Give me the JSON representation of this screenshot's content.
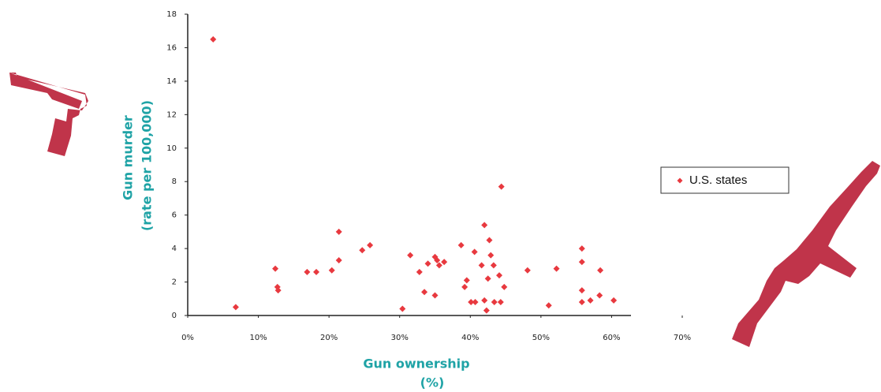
{
  "chart_data": {
    "type": "scatter",
    "y_label": [
      "Gun murder",
      "(rate per 100,000)"
    ],
    "x_label": [
      "Gun ownership",
      "(%)"
    ],
    "series": [
      {
        "name": "U.S. states",
        "color": "#e8393f",
        "x": [
          3.6,
          6.8,
          12.4,
          12.7,
          12.8,
          16.9,
          18.2,
          20.4,
          21.4,
          21.4,
          24.7,
          25.8,
          30.4,
          31.5,
          32.8,
          33.5,
          34.0,
          35.0,
          35.0,
          35.3,
          35.6,
          36.3,
          38.7,
          39.2,
          39.5,
          40.1,
          40.6,
          40.7,
          41.6,
          42.0,
          42.0,
          42.3,
          42.5,
          42.7,
          42.9,
          43.3,
          43.4,
          44.1,
          44.3,
          44.4,
          44.8,
          48.1,
          51.1,
          52.2,
          55.8,
          55.8,
          55.8,
          55.8,
          57.0,
          58.3,
          58.4,
          60.3
        ],
        "values": [
          16.5,
          0.5,
          2.8,
          1.7,
          1.5,
          2.6,
          2.6,
          2.7,
          5.0,
          3.3,
          3.9,
          4.2,
          0.4,
          3.6,
          2.6,
          1.4,
          3.1,
          3.5,
          1.2,
          3.3,
          3.0,
          3.2,
          4.2,
          1.7,
          2.1,
          0.8,
          3.8,
          0.8,
          3.0,
          5.4,
          0.9,
          0.3,
          2.2,
          4.5,
          3.6,
          3.0,
          0.8,
          2.4,
          0.8,
          7.7,
          1.7,
          2.7,
          0.6,
          2.8,
          4.0,
          3.2,
          1.5,
          0.8,
          0.9,
          1.2,
          2.7,
          0.9
        ]
      }
    ],
    "xlim": [
      0,
      70
    ],
    "xticks": [
      {
        "value": 0,
        "label": "0%"
      },
      {
        "value": 10,
        "label": "10%"
      },
      {
        "value": 20,
        "label": "20%"
      },
      {
        "value": 30,
        "label": "30%"
      },
      {
        "value": 40,
        "label": "40%"
      },
      {
        "value": 50,
        "label": "50%"
      },
      {
        "value": 60,
        "label": "60%"
      },
      {
        "value": 70,
        "label": "70%"
      }
    ],
    "ylim": [
      0,
      18
    ],
    "yticks": [
      0,
      2,
      4,
      6,
      8,
      10,
      12,
      14,
      16,
      18
    ],
    "grid": false,
    "legend": "right"
  }
}
